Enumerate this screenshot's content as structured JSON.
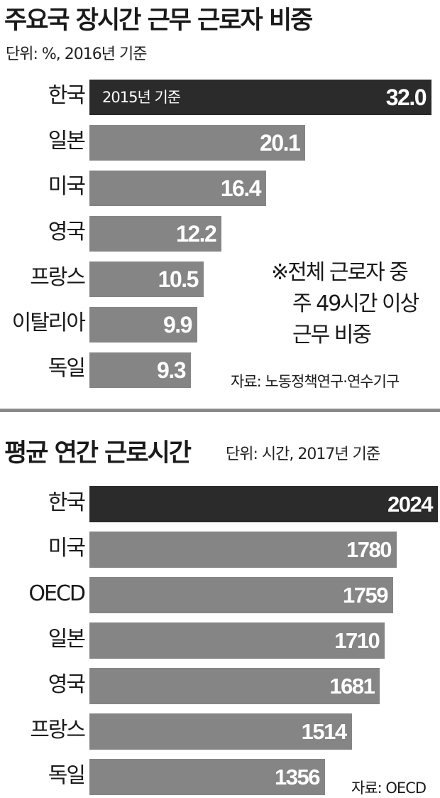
{
  "colors": {
    "highlight_bar": "#2b2b2b",
    "bar": "#858585",
    "bar_text": "#ffffff"
  },
  "chart_data": [
    {
      "type": "bar",
      "orientation": "horizontal",
      "title": "주요국 장시간 근무 근로자 비중",
      "unit": "단위: %, 2016년 기준",
      "categories": [
        "한국",
        "일본",
        "미국",
        "영국",
        "프랑스",
        "이탈리아",
        "독일"
      ],
      "values": [
        32.0,
        20.1,
        16.4,
        12.2,
        10.5,
        9.9,
        9.3
      ],
      "value_labels": [
        "32.0",
        "20.1",
        "16.4",
        "12.2",
        "10.5",
        "9.9",
        "9.3"
      ],
      "highlight_index": 0,
      "bar_note": "2015년 기준",
      "note_lines": [
        "※전체 근로자 중",
        "주 49시간 이상",
        "근무 비중"
      ],
      "source": "자료: 노동정책연구·연수기구"
    },
    {
      "type": "bar",
      "orientation": "horizontal",
      "title": "평균 연간 근로시간",
      "unit": "단위: 시간, 2017년 기준",
      "categories": [
        "한국",
        "미국",
        "OECD",
        "일본",
        "영국",
        "프랑스",
        "독일"
      ],
      "values": [
        2024,
        1780,
        1759,
        1710,
        1681,
        1514,
        1356
      ],
      "value_labels": [
        "2024",
        "1780",
        "1759",
        "1710",
        "1681",
        "1514",
        "1356"
      ],
      "highlight_index": 0,
      "source": "자료: OECD"
    }
  ]
}
